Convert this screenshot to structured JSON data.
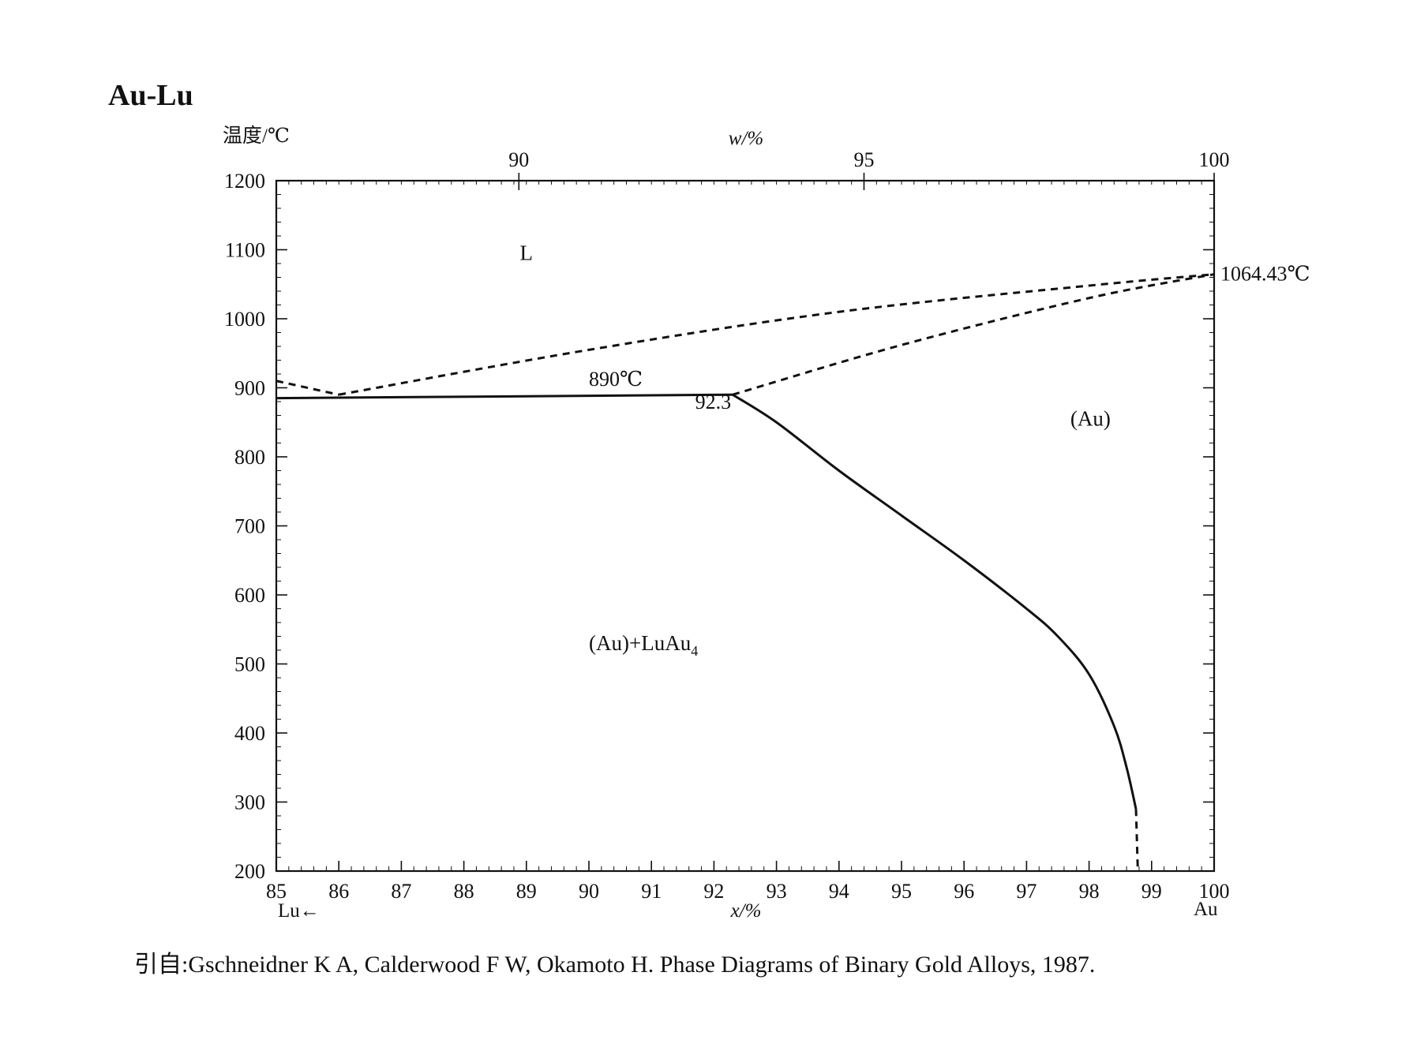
{
  "figure": {
    "title": "Au-Lu",
    "citation": "引自:Gschneidner K A, Calderwood F W, Okamoto H. Phase Diagrams of Binary Gold Alloys, 1987."
  },
  "chart_data": {
    "type": "line",
    "title": "Au-Lu",
    "ylabel": "温度/℃",
    "xlabel": "x/%",
    "x2label": "w/%",
    "x_left_element": "Lu←",
    "x_right_element": "Au",
    "xlim": [
      85,
      100
    ],
    "ylim": [
      200,
      1200
    ],
    "x_ticks": [
      85,
      86,
      87,
      88,
      89,
      90,
      91,
      92,
      93,
      94,
      95,
      96,
      97,
      98,
      99,
      100
    ],
    "y_ticks": [
      200,
      300,
      400,
      500,
      600,
      700,
      800,
      900,
      1000,
      1100,
      1200
    ],
    "x2_ticks": [
      {
        "label": "90",
        "x": 88.88
      },
      {
        "label": "95",
        "x": 94.4
      },
      {
        "label": "100",
        "x": 100
      }
    ],
    "grid": false,
    "series": [
      {
        "style": "dashed",
        "points": [
          [
            85,
            910
          ],
          [
            86,
            890
          ]
        ]
      },
      {
        "style": "dashed",
        "points": [
          [
            86,
            890
          ],
          [
            90,
            955
          ],
          [
            94,
            1010
          ],
          [
            98,
            1048
          ],
          [
            100,
            1064.43
          ]
        ]
      },
      {
        "style": "dashed",
        "points": [
          [
            92.3,
            890
          ],
          [
            95,
            962
          ],
          [
            98,
            1030
          ],
          [
            100,
            1064.43
          ]
        ]
      },
      {
        "style": "solid",
        "points": [
          [
            85,
            885
          ],
          [
            92.3,
            890
          ]
        ]
      },
      {
        "style": "solid",
        "points": [
          [
            92.3,
            890
          ],
          [
            93,
            850
          ],
          [
            94,
            780
          ],
          [
            95,
            715
          ],
          [
            96,
            650
          ],
          [
            97,
            580
          ],
          [
            97.5,
            540
          ],
          [
            98,
            485
          ],
          [
            98.4,
            410
          ],
          [
            98.6,
            350
          ],
          [
            98.75,
            290
          ]
        ]
      },
      {
        "style": "dashed",
        "points": [
          [
            98.75,
            290
          ],
          [
            98.78,
            200
          ]
        ]
      }
    ],
    "annotations": [
      {
        "text": "L",
        "x": 89.0,
        "y": 1085
      },
      {
        "text": "890℃",
        "x": 90.0,
        "y": 903
      },
      {
        "text": "92.3",
        "x": 91.7,
        "y": 870
      },
      {
        "text": "(Au)",
        "x": 97.7,
        "y": 845
      },
      {
        "text": "(Au)+LuAu4",
        "x": 90.0,
        "y": 520
      },
      {
        "text": "1064.43℃",
        "x": 100,
        "y": 1064.43
      }
    ]
  }
}
